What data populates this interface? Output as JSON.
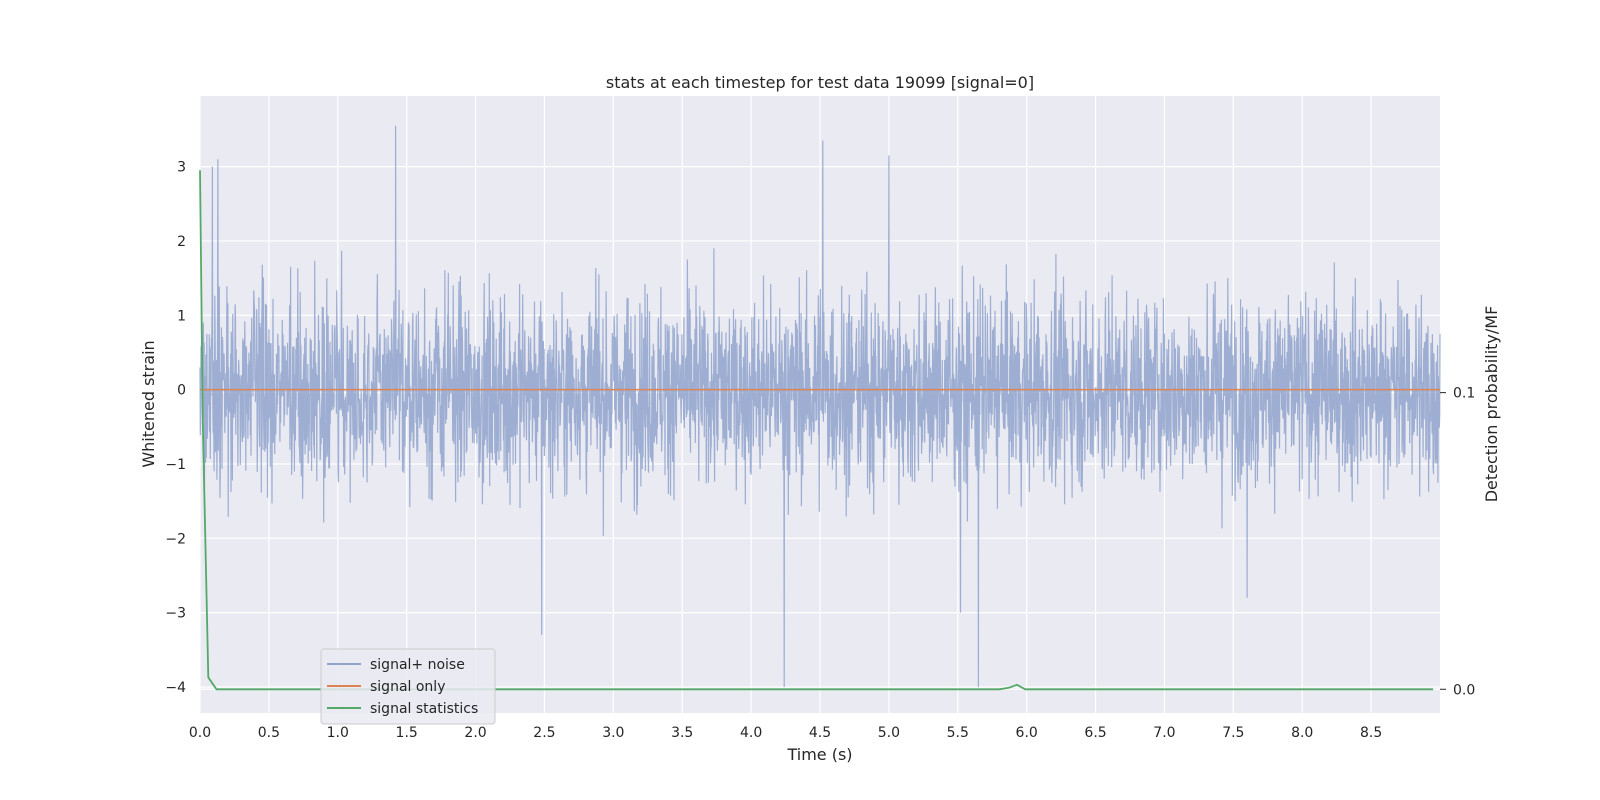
{
  "chart_data": {
    "type": "line",
    "title": "stats at each timestep for test data 19099 [signal=0]",
    "xlabel": "Time (s)",
    "ylabel": "Whitened strain",
    "y2label": "Detection probability/MF",
    "xlim": [
      0.0,
      9.0
    ],
    "ylim": [
      -4.35,
      3.95
    ],
    "y2lim": [
      -0.008,
      0.2
    ],
    "x_ticks": [
      "0.0",
      "0.5",
      "1.0",
      "1.5",
      "2.0",
      "2.5",
      "3.0",
      "3.5",
      "4.0",
      "4.5",
      "5.0",
      "5.5",
      "6.0",
      "6.5",
      "7.0",
      "7.5",
      "8.0",
      "8.5"
    ],
    "y_ticks": [
      "3",
      "2",
      "1",
      "0",
      "−1",
      "−2",
      "−3",
      "−4"
    ],
    "y2_ticks": [
      "0.1",
      "0.0"
    ],
    "grid": true,
    "legend_position": "lower-left",
    "noise": {
      "description_range": [
        -4.0,
        3.6
      ],
      "typical_amplitude": 0.85,
      "peaks": [
        {
          "x": 0.09,
          "y": 3.0
        },
        {
          "x": 0.13,
          "y": 3.1
        },
        {
          "x": 1.42,
          "y": 3.55
        },
        {
          "x": 4.52,
          "y": 3.35
        },
        {
          "x": 5.0,
          "y": 3.15
        },
        {
          "x": 2.48,
          "y": -3.3
        },
        {
          "x": 4.24,
          "y": -4.0
        },
        {
          "x": 5.65,
          "y": -4.0
        },
        {
          "x": 5.52,
          "y": -3.0
        },
        {
          "x": 7.6,
          "y": -2.8
        }
      ]
    },
    "series": [
      {
        "name": "signal+ noise",
        "color": "#8fa3cc"
      },
      {
        "name": "signal only",
        "color": "#dd8452",
        "x": [
          0.0,
          9.0
        ],
        "y": [
          0.0,
          0.0
        ]
      },
      {
        "name": "signal statistics",
        "color": "#55a868",
        "x": [
          0.0,
          0.02,
          0.06,
          0.12,
          0.5,
          3.0,
          5.8,
          5.87,
          5.93,
          5.99,
          6.1,
          8.95
        ],
        "y": [
          0.175,
          0.09,
          0.004,
          0.0,
          0.0,
          0.0,
          0.0,
          0.0005,
          0.0015,
          0.0,
          0.0,
          0.0
        ]
      }
    ],
    "colors": {
      "plot_background": "#eaeaf2",
      "grid": "#ffffff"
    }
  }
}
